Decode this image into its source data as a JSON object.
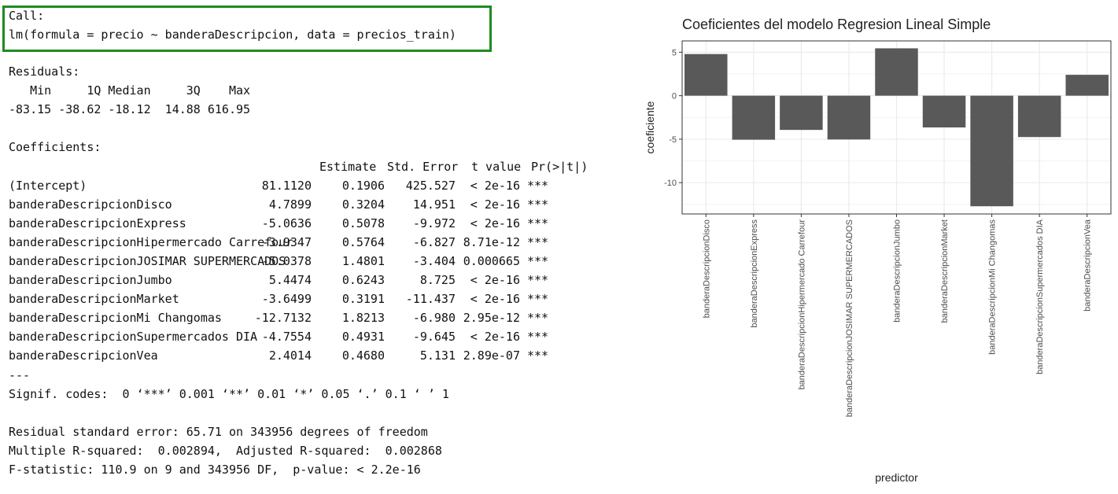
{
  "console": {
    "call_label": "Call:",
    "call_formula": "lm(formula = precio ~ banderaDescripcion, data = precios_train)",
    "residuals_label": "Residuals:",
    "residuals_header": "   Min     1Q Median     3Q    Max ",
    "residuals_values": "-83.15 -38.62 -18.12  14.88 616.95 ",
    "coefficients_label": "Coefficients:",
    "coef_columns": {
      "estimate": "Estimate",
      "std_error": "Std. Error",
      "t_value": "t value",
      "p_value": "Pr(>|t|)"
    },
    "coef_rows": [
      {
        "name": "(Intercept)",
        "estimate": "81.1120",
        "std_error": "0.1906",
        "t_value": "425.527",
        "p_value": "< 2e-16",
        "signif": "***"
      },
      {
        "name": "banderaDescripcionDisco",
        "estimate": "4.7899",
        "std_error": "0.3204",
        "t_value": "14.951",
        "p_value": "< 2e-16",
        "signif": "***"
      },
      {
        "name": "banderaDescripcionExpress",
        "estimate": "-5.0636",
        "std_error": "0.5078",
        "t_value": "-9.972",
        "p_value": "< 2e-16",
        "signif": "***"
      },
      {
        "name": "banderaDescripcionHipermercado Carrefour",
        "estimate": "-3.9347",
        "std_error": "0.5764",
        "t_value": "-6.827",
        "p_value": "8.71e-12",
        "signif": "***"
      },
      {
        "name": "banderaDescripcionJOSIMAR SUPERMERCADOS",
        "estimate": "-5.0378",
        "std_error": "1.4801",
        "t_value": "-3.404",
        "p_value": "0.000665",
        "signif": "***"
      },
      {
        "name": "banderaDescripcionJumbo",
        "estimate": "5.4474",
        "std_error": "0.6243",
        "t_value": "8.725",
        "p_value": "< 2e-16",
        "signif": "***"
      },
      {
        "name": "banderaDescripcionMarket",
        "estimate": "-3.6499",
        "std_error": "0.3191",
        "t_value": "-11.437",
        "p_value": "< 2e-16",
        "signif": "***"
      },
      {
        "name": "banderaDescripcionMi Changomas",
        "estimate": "-12.7132",
        "std_error": "1.8213",
        "t_value": "-6.980",
        "p_value": "2.95e-12",
        "signif": "***"
      },
      {
        "name": "banderaDescripcionSupermercados DIA",
        "estimate": "-4.7554",
        "std_error": "0.4931",
        "t_value": "-9.645",
        "p_value": "< 2e-16",
        "signif": "***"
      },
      {
        "name": "banderaDescripcionVea",
        "estimate": "2.4014",
        "std_error": "0.4680",
        "t_value": "5.131",
        "p_value": "2.89e-07",
        "signif": "***"
      }
    ],
    "separator": "---",
    "signif_codes": "Signif. codes:  0 ‘***’ 0.001 ‘**’ 0.01 ‘*’ 0.05 ‘.’ 0.1 ‘ ’ 1",
    "residual_se": "Residual standard error: 65.71 on 343956 degrees of freedom",
    "r_squared": "Multiple R-squared:  0.002894,\tAdjusted R-squared:  0.002868 ",
    "f_statistic": "F-statistic: 110.9 on 9 and 343956 DF,  p-value: < 2.2e-16"
  },
  "colors": {
    "call_border": "#1f8b1f",
    "bar_fill": "#595959",
    "panel_border": "#333333",
    "grid": "#ebebeb"
  },
  "chart_data": {
    "type": "bar",
    "title": "Coeficientes del modelo Regresion Lineal Simple",
    "xlabel": "predictor",
    "ylabel": "coeficiente",
    "categories": [
      "banderaDescripcionDisco",
      "banderaDescripcionExpress",
      "banderaDescripcionHipermercado Carrefour",
      "banderaDescripcionJOSIMAR SUPERMERCADOS",
      "banderaDescripcionJumbo",
      "banderaDescripcionMarket",
      "banderaDescripcionMi Changomas",
      "banderaDescripcionSupermercados DIA",
      "banderaDescripcionVea"
    ],
    "values": [
      4.7899,
      -5.0636,
      -3.9347,
      -5.0378,
      5.4474,
      -3.6499,
      -12.7132,
      -4.7554,
      2.4014
    ],
    "yticks": [
      "5",
      "0",
      "-5",
      "-10"
    ],
    "ytick_values": [
      5,
      0,
      -5,
      -10
    ],
    "ylim": [
      -13.6,
      6.3
    ],
    "grid": true,
    "theme": "bw"
  }
}
